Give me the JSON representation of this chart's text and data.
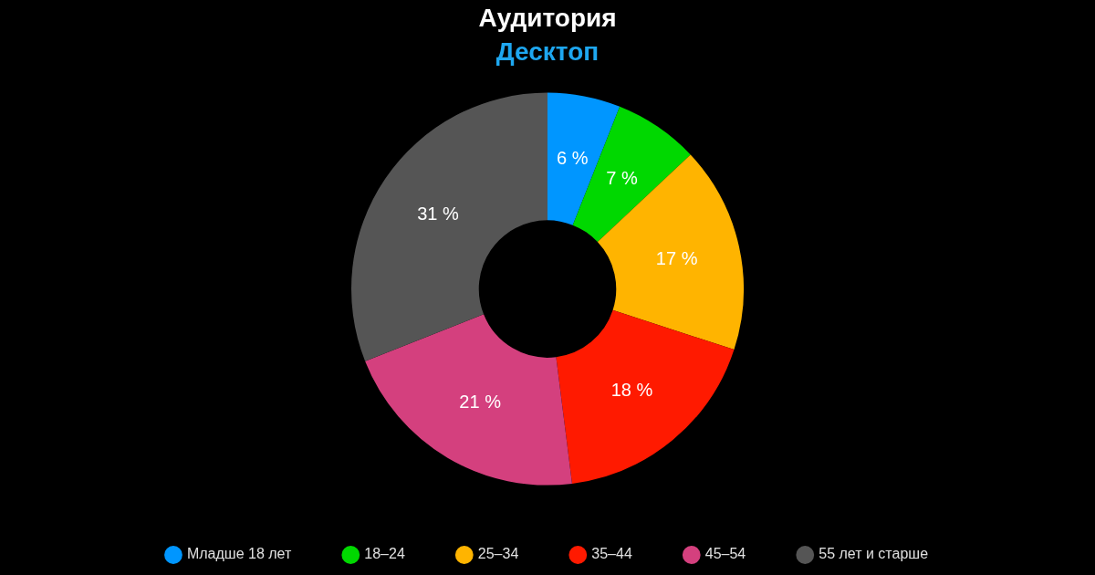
{
  "chart_data": {
    "type": "donut",
    "title": "Аудитория",
    "subtitle": "Десктоп",
    "categories": [
      "Младше 18 лет",
      "18–24",
      "25–34",
      "35–44",
      "45–54",
      "55 лет и старше"
    ],
    "values": [
      6,
      7,
      17,
      18,
      21,
      31
    ],
    "value_labels": [
      "6 %",
      "7 %",
      "17 %",
      "18 %",
      "21 %",
      "31 %"
    ],
    "colors": [
      "#0096ff",
      "#00d800",
      "#ffb400",
      "#ff1a00",
      "#d4407e",
      "#555555"
    ],
    "legend": "bottom"
  }
}
